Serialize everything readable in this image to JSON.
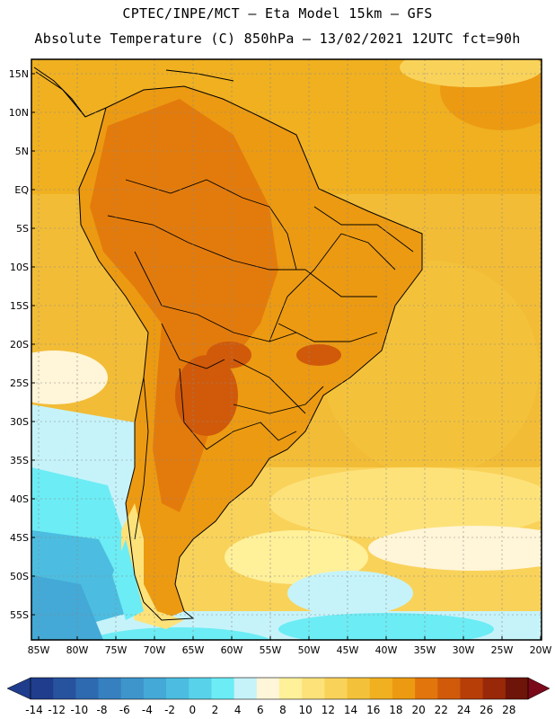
{
  "header": {
    "line1": "CPTEC/INPE/MCT –  Eta Model 15km – GFS",
    "line2": "Absolute Temperature (C) 850hPa – 13/02/2021 12UTC fct=90h"
  },
  "axes": {
    "lat_labels": [
      "15N",
      "10N",
      "5N",
      "EQ",
      "5S",
      "10S",
      "15S",
      "20S",
      "25S",
      "30S",
      "35S",
      "40S",
      "45S",
      "50S",
      "55S"
    ],
    "lon_labels": [
      "85W",
      "80W",
      "75W",
      "70W",
      "65W",
      "60W",
      "55W",
      "50W",
      "45W",
      "40W",
      "35W",
      "30W",
      "25W",
      "20W"
    ]
  },
  "colorbar": {
    "labels": [
      "-14",
      "-12",
      "-10",
      "-8",
      "-6",
      "-4",
      "-2",
      "0",
      "2",
      "4",
      "6",
      "8",
      "10",
      "12",
      "14",
      "16",
      "18",
      "20",
      "22",
      "24",
      "26",
      "28"
    ],
    "colors": [
      "#1f3d8c",
      "#27529e",
      "#2e6ab0",
      "#3680c0",
      "#3e95cc",
      "#44a9d6",
      "#4cbde0",
      "#58d2ea",
      "#6cecf5",
      "#c6f3fa",
      "#fff5d8",
      "#fff09a",
      "#fde27a",
      "#f9d25a",
      "#f4c23a",
      "#f0b020",
      "#ec9a12",
      "#e2760c",
      "#d05a0a",
      "#b83e08",
      "#982808",
      "#6e1408"
    ]
  }
}
